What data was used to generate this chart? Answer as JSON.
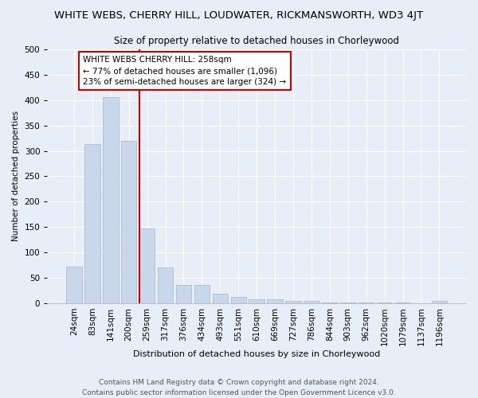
{
  "title": "WHITE WEBS, CHERRY HILL, LOUDWATER, RICKMANSWORTH, WD3 4JT",
  "subtitle": "Size of property relative to detached houses in Chorleywood",
  "xlabel": "Distribution of detached houses by size in Chorleywood",
  "ylabel": "Number of detached properties",
  "bar_color": "#c8d8ea",
  "bar_edge_color": "#a0b8cc",
  "fig_background_color": "#e8eef8",
  "ax_background_color": "#e8eef8",
  "grid_color": "#ffffff",
  "categories": [
    "24sqm",
    "83sqm",
    "141sqm",
    "200sqm",
    "259sqm",
    "317sqm",
    "376sqm",
    "434sqm",
    "493sqm",
    "551sqm",
    "610sqm",
    "669sqm",
    "727sqm",
    "786sqm",
    "844sqm",
    "903sqm",
    "962sqm",
    "1020sqm",
    "1079sqm",
    "1137sqm",
    "1196sqm"
  ],
  "values": [
    72,
    314,
    406,
    320,
    147,
    70,
    36,
    36,
    19,
    13,
    7,
    7,
    5,
    5,
    2,
    2,
    1,
    1,
    1,
    0,
    5
  ],
  "vline_x": 4,
  "vline_color": "#cc0000",
  "annotation_text": "WHITE WEBS CHERRY HILL: 258sqm\n← 77% of detached houses are smaller (1,096)\n23% of semi-detached houses are larger (324) →",
  "annotation_box_facecolor": "#ffffff",
  "annotation_box_edgecolor": "#cc0000",
  "ylim": [
    0,
    500
  ],
  "yticks": [
    0,
    50,
    100,
    150,
    200,
    250,
    300,
    350,
    400,
    450,
    500
  ],
  "title_fontsize": 9.5,
  "subtitle_fontsize": 8.5,
  "xlabel_fontsize": 8,
  "ylabel_fontsize": 7.5,
  "tick_fontsize": 7.5,
  "annot_fontsize": 7.5,
  "footnote1": "Contains HM Land Registry data © Crown copyright and database right 2024.",
  "footnote2": "Contains public sector information licensed under the Open Government Licence v3.0.",
  "footnote_fontsize": 6.5
}
